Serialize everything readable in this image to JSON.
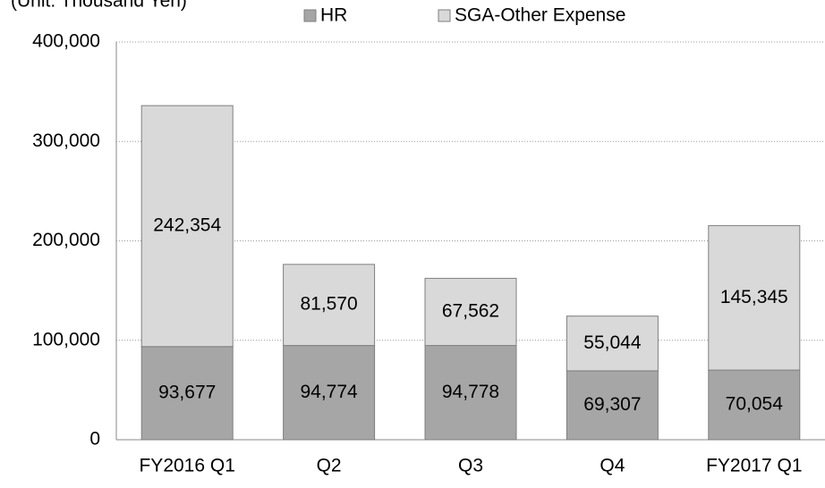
{
  "chart_data": {
    "type": "stacked_bar",
    "subtitle": "(Unit: Thousand Yen)",
    "categories": [
      "FY2016 Q1",
      "Q2",
      "Q3",
      "Q4",
      "FY2017 Q1"
    ],
    "series": [
      {
        "name": "HR",
        "color": "#a6a6a6",
        "values": [
          93677,
          94774,
          94778,
          69307,
          70054
        ],
        "value_labels": [
          "93,677",
          "94,774",
          "94,778",
          "69,307",
          "70,054"
        ]
      },
      {
        "name": "SGA-Other Expense",
        "color": "#d9d9d9",
        "values": [
          242354,
          81570,
          67562,
          55044,
          145345
        ],
        "value_labels": [
          "242,354",
          "81,570",
          "67,562",
          "55,044",
          "145,345"
        ]
      }
    ],
    "ylim": [
      0,
      400000
    ],
    "yticks": [
      0,
      {
        "value": 100000,
        "label": "100,000"
      },
      {
        "value": 200000,
        "label": "200,000"
      },
      {
        "value": 300000,
        "label": "300,000"
      },
      {
        "value": 400000,
        "label": "400,000"
      }
    ],
    "grid": true,
    "legend": "top"
  }
}
